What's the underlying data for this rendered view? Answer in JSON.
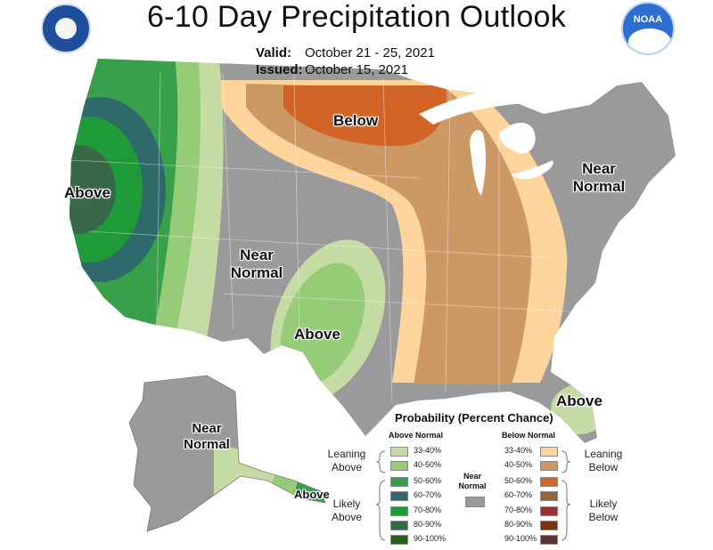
{
  "header": {
    "title": "6-10 Day Precipitation Outlook",
    "valid_label": "Valid:",
    "valid_value": "October 21 - 25, 2021",
    "issued_label": "Issued:",
    "issued_value": "October 15, 2021",
    "logo_right_text": "NOAA"
  },
  "map_labels": {
    "west_above": "Above",
    "north_below": "Below",
    "northeast_near": "Near",
    "northeast_normal": "Normal",
    "central_near": "Near",
    "central_normal": "Normal",
    "south_above": "Above",
    "florida_above": "Above",
    "alaska_near": "Near",
    "alaska_normal": "Normal",
    "alaska_above": "Above"
  },
  "legend": {
    "title": "Probability (Percent Chance)",
    "above_header": "Above Normal",
    "below_header": "Below Normal",
    "near_normal_line1": "Near",
    "near_normal_line2": "Normal",
    "leaning_above_1": "Leaning",
    "leaning_above_2": "Above",
    "likely_above_1": "Likely",
    "likely_above_2": "Above",
    "leaning_below_1": "Leaning",
    "leaning_below_2": "Below",
    "likely_below_1": "Likely",
    "likely_below_2": "Below",
    "above": [
      {
        "range": "33-40%",
        "color": "#c4dca4"
      },
      {
        "range": "40-50%",
        "color": "#96cc78"
      },
      {
        "range": "50-60%",
        "color": "#38a04a"
      },
      {
        "range": "60-70%",
        "color": "#2e6a6a"
      },
      {
        "range": "70-80%",
        "color": "#1e9a38"
      },
      {
        "range": "80-90%",
        "color": "#376848"
      },
      {
        "range": "90-100%",
        "color": "#265f1e"
      }
    ],
    "below": [
      {
        "range": "33-40%",
        "color": "#fdd49c"
      },
      {
        "range": "40-50%",
        "color": "#cc9864"
      },
      {
        "range": "50-60%",
        "color": "#d26428"
      },
      {
        "range": "60-70%",
        "color": "#98643c"
      },
      {
        "range": "70-80%",
        "color": "#983232"
      },
      {
        "range": "80-90%",
        "color": "#7a3410"
      },
      {
        "range": "90-100%",
        "color": "#5c3232"
      }
    ],
    "near_normal_color": "#9a9a9a"
  }
}
